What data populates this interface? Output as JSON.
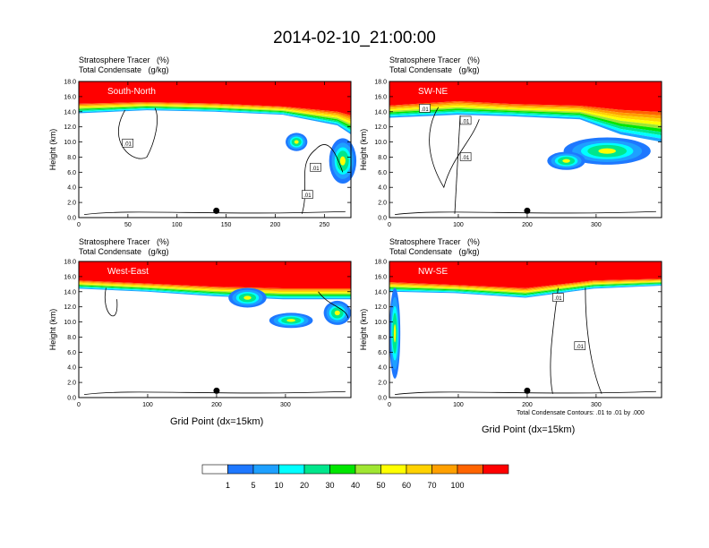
{
  "title": "2014-02-10_21:00:00",
  "var1": "Stratosphere Tracer   (%)",
  "var2": "Total Condensate   (g/kg)",
  "ylabel": "Height (km)",
  "xlabel": "Grid Point (dx=15km)",
  "contour_note": "Total Condensate Contours: .01 to .01 by .000",
  "colors": [
    "#ffffff",
    "#1e78ff",
    "#1ea0ff",
    "#00ffff",
    "#00e68c",
    "#00e600",
    "#a0e632",
    "#ffff00",
    "#ffd200",
    "#ffa000",
    "#ff6400",
    "#ff0000"
  ],
  "chart_data": [
    {
      "type": "heatmap",
      "panel": "South-North",
      "xlim": [
        0,
        277
      ],
      "ylim": [
        0,
        18
      ],
      "xticks": [
        0,
        50,
        100,
        150,
        200,
        250
      ],
      "yticks": [
        "0.0",
        "2.0",
        "4.0",
        "6.0",
        "8.0",
        "10.0",
        "12.0",
        "14.0",
        "16.0",
        "18.0"
      ],
      "contour_labels": [
        ".01",
        ".01",
        ".01"
      ],
      "marker_x": 140
    },
    {
      "type": "heatmap",
      "panel": "SW-NE",
      "xlim": [
        0,
        395
      ],
      "ylim": [
        0,
        18
      ],
      "xticks": [
        0,
        100,
        200,
        300
      ],
      "yticks": [
        "0.0",
        "2.0",
        "4.0",
        "6.0",
        "8.0",
        "10.0",
        "12.0",
        "14.0",
        "16.0",
        "18.0"
      ],
      "contour_labels": [
        ".01",
        ".01",
        ".01"
      ],
      "marker_x": 200
    },
    {
      "type": "heatmap",
      "panel": "West-East",
      "xlim": [
        0,
        395
      ],
      "ylim": [
        0,
        18
      ],
      "xticks": [
        0,
        100,
        200,
        300
      ],
      "yticks": [
        "0.0",
        "2.0",
        "4.0",
        "6.0",
        "8.0",
        "10.0",
        "12.0",
        "14.0",
        "16.0",
        "18.0"
      ],
      "contour_labels": [],
      "marker_x": 200
    },
    {
      "type": "heatmap",
      "panel": "NW-SE",
      "xlim": [
        0,
        395
      ],
      "ylim": [
        0,
        18
      ],
      "xticks": [
        0,
        100,
        200,
        300
      ],
      "yticks": [
        "0.0",
        "2.0",
        "4.0",
        "6.0",
        "8.0",
        "10.0",
        "12.0",
        "14.0",
        "16.0",
        "18.0"
      ],
      "contour_labels": [
        ".01",
        ".01"
      ],
      "marker_x": 200
    }
  ],
  "colorbar": {
    "labels": [
      "1",
      "5",
      "10",
      "20",
      "30",
      "40",
      "50",
      "60",
      "70",
      "100"
    ]
  }
}
